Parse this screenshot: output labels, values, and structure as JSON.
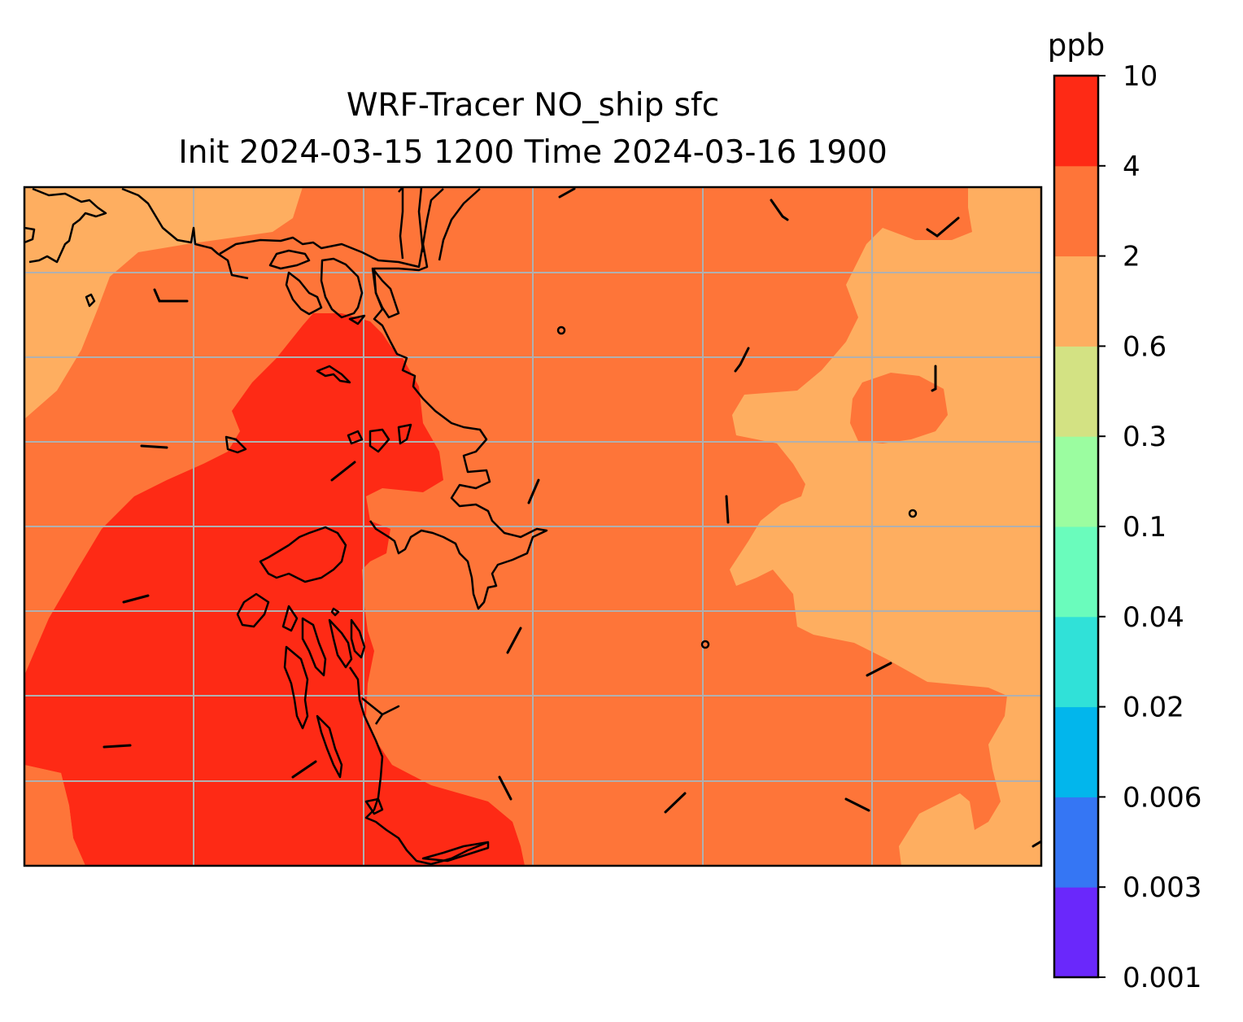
{
  "title_line1": "WRF-Tracer NO_ship sfc",
  "title_line2": "Init 2024-03-15 1200 Time 2024-03-16 1900",
  "colorbar": {
    "unit": "ppb",
    "levels": [
      {
        "label": "0.001",
        "color": "#6a28fb"
      },
      {
        "label": "0.003",
        "color": "#3576f4"
      },
      {
        "label": "0.006",
        "color": "#02b6ec"
      },
      {
        "label": "0.02",
        "color": "#30e1d8"
      },
      {
        "label": "0.04",
        "color": "#6afcbc"
      },
      {
        "label": "0.1",
        "color": "#9bfda0"
      },
      {
        "label": "0.3",
        "color": "#d3e283"
      },
      {
        "label": "0.6",
        "color": "#feae60"
      },
      {
        "label": "2",
        "color": "#fe7539"
      },
      {
        "label": "4",
        "color": "#fe2a15"
      },
      {
        "label": "10",
        "color": null
      }
    ]
  },
  "map": {
    "field_colors": {
      "low": "#feae60",
      "mid": "#fe7539",
      "high": "#fe2a15"
    },
    "coastline_color": "#000000",
    "gridline_color": "#b0b0b0"
  }
}
